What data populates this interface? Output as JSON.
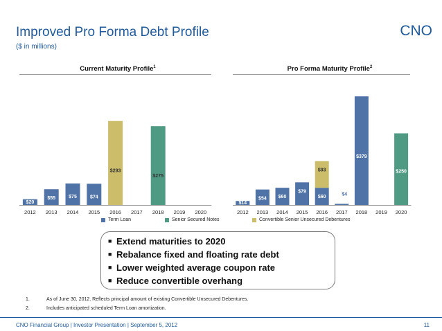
{
  "slide": {
    "title": "Improved Pro Forma Debt Profile",
    "subtitle": "($ in millions)",
    "brand": "CNO"
  },
  "colors": {
    "term_loan": "#4f73a6",
    "senior_secured_notes": "#4e9a83",
    "convertible": "#cbbd6a",
    "title_blue": "#1f5a9c"
  },
  "legend": {
    "items": [
      {
        "label": "Term Loan",
        "color": "#4f73a6"
      },
      {
        "label": "Senior Secured Notes",
        "color": "#4e9a83"
      },
      {
        "label": "Convertible Senior Unsecured Debentures",
        "color": "#cbbd6a"
      }
    ]
  },
  "chart_data": [
    {
      "type": "bar",
      "title": "Current Maturity Profile",
      "title_footnote": "1",
      "categories": [
        "2012",
        "2013",
        "2014",
        "2015",
        "2016",
        "2017",
        "2018",
        "2019",
        "2020"
      ],
      "series": [
        {
          "name": "Term Loan",
          "values": [
            20,
            55,
            75,
            74,
            0,
            0,
            0,
            0,
            0
          ],
          "color": "#4f73a6"
        },
        {
          "name": "Convertible Senior Unsecured Debentures",
          "values": [
            0,
            0,
            0,
            0,
            293,
            0,
            0,
            0,
            0
          ],
          "color": "#cbbd6a"
        },
        {
          "name": "Senior Secured Notes",
          "values": [
            0,
            0,
            0,
            0,
            0,
            0,
            275,
            0,
            0
          ],
          "color": "#4e9a83"
        }
      ],
      "data_labels": [
        "$20",
        "$55",
        "$75",
        "$74",
        "$293",
        "",
        "$275",
        "",
        ""
      ],
      "ylim": [
        0,
        400
      ]
    },
    {
      "type": "bar",
      "title": "Pro Forma Maturity Profile",
      "title_footnote": "2",
      "categories": [
        "2012",
        "2013",
        "2014",
        "2015",
        "2016",
        "2017",
        "2018",
        "2019",
        "2020"
      ],
      "series": [
        {
          "name": "Term Loan",
          "values": [
            14,
            54,
            60,
            79,
            60,
            4,
            379,
            0,
            0
          ],
          "color": "#4f73a6"
        },
        {
          "name": "Convertible Senior Unsecured Debentures",
          "values": [
            0,
            0,
            0,
            0,
            93,
            0,
            0,
            0,
            0
          ],
          "color": "#cbbd6a"
        },
        {
          "name": "Senior Secured Notes",
          "values": [
            0,
            0,
            0,
            0,
            0,
            0,
            0,
            0,
            250
          ],
          "color": "#4e9a83"
        }
      ],
      "data_labels": [
        [
          "$14"
        ],
        [
          "$54"
        ],
        [
          "$60"
        ],
        [
          "$79"
        ],
        [
          "$60",
          "$93"
        ],
        [
          "$4"
        ],
        [
          "$379"
        ],
        [],
        [
          "$250"
        ]
      ],
      "ylim": [
        0,
        400
      ]
    }
  ],
  "callout": {
    "bullets": [
      "Extend maturities to 2020",
      "Rebalance fixed and floating rate debt",
      "Lower weighted average coupon rate",
      "Reduce convertible overhang"
    ]
  },
  "footnotes": [
    {
      "num": "1.",
      "text": "As of June 30, 2012.  Reflects principal amount of existing Convertible Unsecured Debentures."
    },
    {
      "num": "2.",
      "text": "Includes anticipated scheduled Term Loan amortization."
    }
  ],
  "footer": {
    "text": "CNO Financial Group  |  Investor Presentation |  September 5, 2012",
    "page": "11"
  }
}
